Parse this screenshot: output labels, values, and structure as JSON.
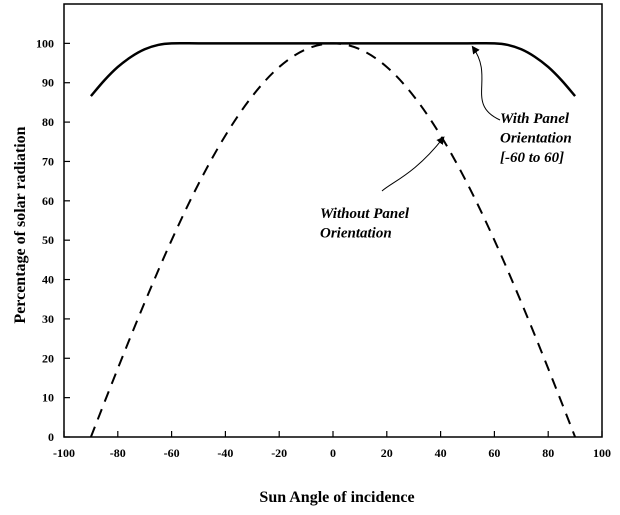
{
  "chart_data": {
    "type": "line",
    "title": "",
    "xlabel": "Sun Angle of incidence",
    "ylabel": "Percentage of solar radiation",
    "xlim": [
      -100,
      100
    ],
    "ylim": [
      0,
      110
    ],
    "xticks": [
      -100,
      -80,
      -60,
      -40,
      -20,
      0,
      20,
      40,
      60,
      80,
      100
    ],
    "yticks": [
      0,
      10,
      20,
      30,
      40,
      50,
      60,
      70,
      80,
      90,
      100
    ],
    "grid": false,
    "legend": "none",
    "series": [
      {
        "key": "with_orientation",
        "style": "solid",
        "color": "#000000",
        "x": [
          -90,
          -85,
          -80,
          -75,
          -70,
          -65,
          -60,
          -50,
          -40,
          -30,
          -20,
          -10,
          0,
          10,
          20,
          30,
          40,
          50,
          60,
          65,
          70,
          75,
          80,
          85,
          90
        ],
        "y": [
          86.6,
          90.6,
          94.0,
          96.6,
          98.5,
          99.6,
          100,
          100,
          100,
          100,
          100,
          100,
          100,
          100,
          100,
          100,
          100,
          100,
          100,
          99.6,
          98.5,
          96.6,
          94.0,
          90.6,
          86.6
        ]
      },
      {
        "key": "without_orientation",
        "style": "dashed",
        "color": "#000000",
        "x": [
          -90,
          -80,
          -70,
          -60,
          -50,
          -40,
          -30,
          -20,
          -10,
          0,
          10,
          20,
          30,
          40,
          50,
          60,
          70,
          80,
          90
        ],
        "y": [
          0,
          17.4,
          34.2,
          50.0,
          64.3,
          76.6,
          86.6,
          94.0,
          98.5,
          100,
          98.5,
          94.0,
          86.6,
          76.6,
          64.3,
          50.0,
          34.2,
          17.4,
          0
        ]
      }
    ],
    "annotations": [
      {
        "key": "with",
        "lines": [
          "With Panel",
          "Orientation",
          "[-60 to 60]"
        ],
        "arrow_to": [
          52,
          99
        ]
      },
      {
        "key": "without",
        "lines": [
          "Without Panel",
          "Orientation"
        ],
        "arrow_to": [
          41,
          76
        ]
      }
    ]
  }
}
